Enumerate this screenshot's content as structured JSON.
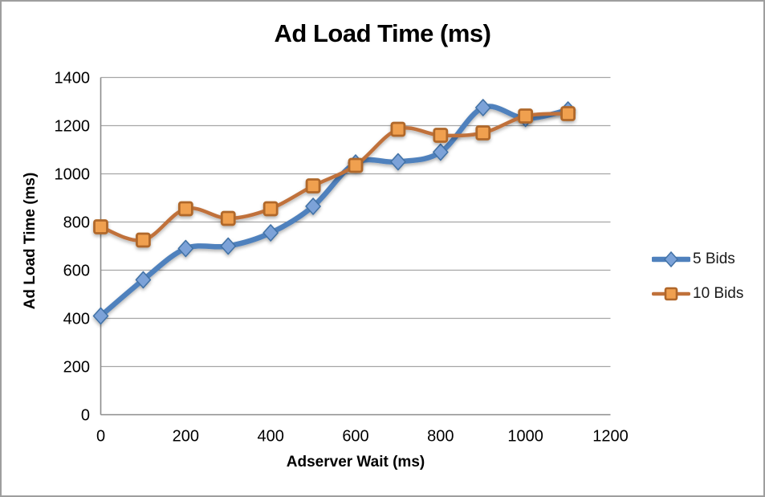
{
  "chart_data": {
    "type": "line",
    "title": "Ad Load Time (ms)",
    "xlabel": "Adserver Wait (ms)",
    "ylabel": "Ad Load Time (ms)",
    "x": [
      0,
      100,
      200,
      300,
      400,
      500,
      600,
      700,
      800,
      900,
      1000,
      1100
    ],
    "series": [
      {
        "name": "5 Bids",
        "marker": "diamond",
        "line_color": "#4f81bd",
        "marker_fill": "#7ba2d8",
        "marker_stroke": "#4272a6",
        "line_width": 6.5,
        "values": [
          410,
          560,
          690,
          700,
          755,
          865,
          1045,
          1050,
          1090,
          1275,
          1230,
          1265
        ]
      },
      {
        "name": "10 Bids",
        "marker": "square",
        "line_color": "#c0713a",
        "marker_fill": "#f0a050",
        "marker_stroke": "#b0672a",
        "line_width": 4.5,
        "values": [
          780,
          725,
          855,
          815,
          855,
          950,
          1035,
          1185,
          1160,
          1170,
          1240,
          1250
        ]
      }
    ],
    "xlim": [
      0,
      1200
    ],
    "ylim": [
      0,
      1400
    ],
    "x_ticks": [
      0,
      200,
      400,
      600,
      800,
      1000,
      1200
    ],
    "y_ticks": [
      0,
      200,
      400,
      600,
      800,
      1000,
      1200,
      1400
    ],
    "grid": true,
    "smoothed_lines": true,
    "legend_position": "right",
    "colors": {
      "gridline": "#a6a6a6",
      "axis_line": "#8c8c8c",
      "tick_label": "#000000",
      "frame_border": "#9e9e9e",
      "background": "#ffffff"
    }
  }
}
